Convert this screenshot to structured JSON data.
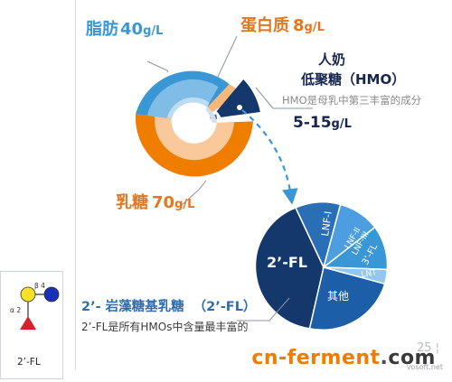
{
  "fat": {
    "name": "脂肪",
    "value": "40",
    "unit": "g/L"
  },
  "protein": {
    "name": "蛋白质",
    "value": "8",
    "unit": "g/L"
  },
  "hmo": {
    "title_line1": "人奶",
    "title_line2": "低聚糖（HMO）",
    "desc": "HMO是母乳中第三丰富的成分",
    "range": "5-15",
    "unit": "g/L"
  },
  "lactose": {
    "name": "乳糖",
    "value": "70",
    "unit": "g/L"
  },
  "hmo_pie": {
    "center": "2’-FL",
    "labels": [
      "LNF-I",
      "LNF-II",
      "LNF-III",
      "3’-FL",
      "LNT",
      "其他"
    ]
  },
  "fl": {
    "title": "2’- 岩藻糖基乳糖",
    "abbr": "（2’-FL）",
    "desc": "2’-FL是所有HMOs中含量最丰富的"
  },
  "molecule": {
    "alpha": "α 2",
    "beta": "β 4",
    "label": "2’-FL"
  },
  "watermark": {
    "text": "cn-ferment",
    "dot": ".",
    "tld": "com",
    "small": "vosoft.net",
    "num": "25 ¦"
  },
  "colors": {
    "fat": "#3a97d6",
    "protein": "#f5a45a",
    "hmo": "#14386b",
    "lactose": "#ef7d00",
    "fl_blue": "#2a6fb5"
  }
}
